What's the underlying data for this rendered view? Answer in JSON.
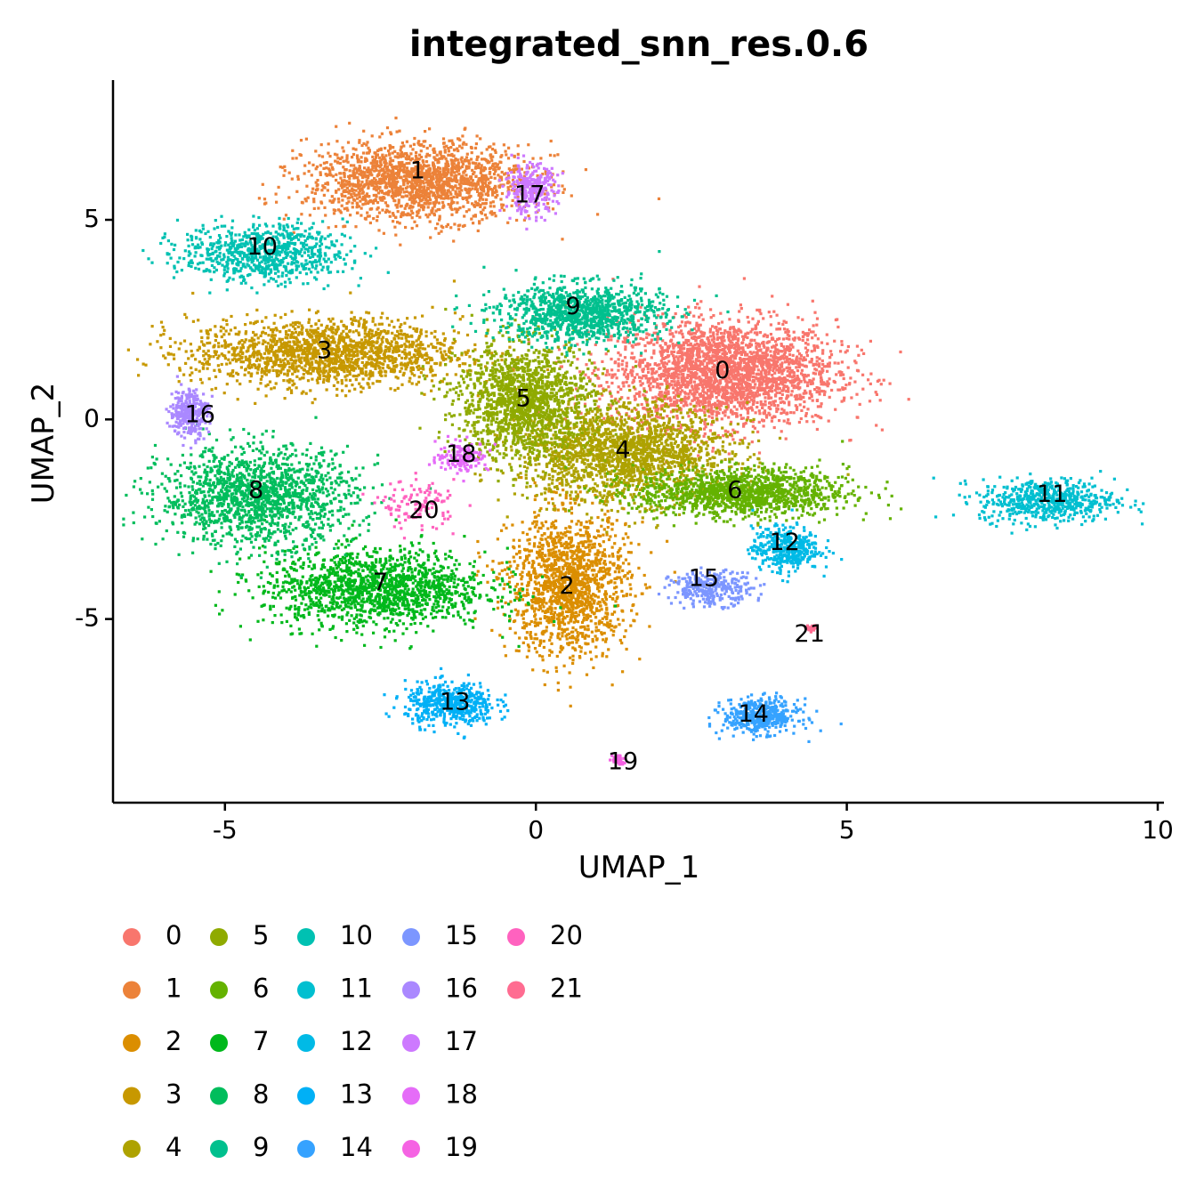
{
  "chart_data": {
    "type": "scatter",
    "title": "integrated_snn_res.0.6",
    "xlabel": "UMAP_1",
    "ylabel": "UMAP_2",
    "xlim": [
      -6.8,
      10.1
    ],
    "ylim": [
      -9.6,
      8.5
    ],
    "x_ticks": [
      -5,
      0,
      5,
      10
    ],
    "y_ticks": [
      -5,
      0,
      5
    ],
    "x_tick_labels": [
      "-5",
      "0",
      "5",
      "10"
    ],
    "y_tick_labels": [
      "-5",
      "0",
      "5"
    ],
    "grid": false,
    "legend_position": "bottom",
    "clusters": [
      {
        "id": "0",
        "color": "#F8766D",
        "x": 3.0,
        "y": 1.2,
        "sx": 1.5,
        "sy": 1.1,
        "count": 2600
      },
      {
        "id": "1",
        "color": "#EC8239",
        "x": -1.9,
        "y": 6.0,
        "sx": 1.5,
        "sy": 0.8,
        "count": 1800
      },
      {
        "id": "2",
        "color": "#DB8E00",
        "x": 0.5,
        "y": -4.1,
        "sx": 0.8,
        "sy": 1.5,
        "count": 1500
      },
      {
        "id": "3",
        "color": "#C79800",
        "x": -3.4,
        "y": 1.7,
        "sx": 1.8,
        "sy": 0.7,
        "count": 1700
      },
      {
        "id": "4",
        "color": "#AEA200",
        "x": 1.4,
        "y": -0.8,
        "sx": 1.4,
        "sy": 1.0,
        "count": 1900
      },
      {
        "id": "5",
        "color": "#8FAA00",
        "x": -0.2,
        "y": 0.5,
        "sx": 0.9,
        "sy": 1.2,
        "count": 1500
      },
      {
        "id": "6",
        "color": "#64B200",
        "x": 3.3,
        "y": -1.8,
        "sx": 1.4,
        "sy": 0.5,
        "count": 1300
      },
      {
        "id": "7",
        "color": "#00B81B",
        "x": -2.6,
        "y": -4.2,
        "sx": 1.5,
        "sy": 0.8,
        "count": 1500
      },
      {
        "id": "8",
        "color": "#00BD5C",
        "x": -4.5,
        "y": -1.9,
        "sx": 1.3,
        "sy": 1.0,
        "count": 1500
      },
      {
        "id": "9",
        "color": "#00C08E",
        "x": 0.7,
        "y": 2.7,
        "sx": 1.1,
        "sy": 0.6,
        "count": 1100
      },
      {
        "id": "10",
        "color": "#00C1B2",
        "x": -4.4,
        "y": 4.2,
        "sx": 1.1,
        "sy": 0.6,
        "count": 800
      },
      {
        "id": "11",
        "color": "#00BFD0",
        "x": 8.2,
        "y": -2.0,
        "sx": 0.9,
        "sy": 0.45,
        "count": 600
      },
      {
        "id": "12",
        "color": "#00BAE6",
        "x": 4.0,
        "y": -3.2,
        "sx": 0.45,
        "sy": 0.45,
        "count": 400
      },
      {
        "id": "13",
        "color": "#00B0F6",
        "x": -1.4,
        "y": -7.1,
        "sx": 0.6,
        "sy": 0.45,
        "count": 500
      },
      {
        "id": "14",
        "color": "#35A2FF",
        "x": 3.6,
        "y": -7.4,
        "sx": 0.5,
        "sy": 0.35,
        "count": 450
      },
      {
        "id": "15",
        "color": "#7C96FF",
        "x": 2.8,
        "y": -4.2,
        "sx": 0.55,
        "sy": 0.35,
        "count": 300
      },
      {
        "id": "16",
        "color": "#AA88FF",
        "x": -5.6,
        "y": 0.2,
        "sx": 0.25,
        "sy": 0.5,
        "count": 300
      },
      {
        "id": "17",
        "color": "#CD79FF",
        "x": -0.1,
        "y": 5.8,
        "sx": 0.35,
        "sy": 0.5,
        "count": 300
      },
      {
        "id": "18",
        "color": "#E56CF8",
        "x": -1.2,
        "y": -0.9,
        "sx": 0.35,
        "sy": 0.3,
        "count": 150
      },
      {
        "id": "19",
        "color": "#F563E3",
        "x": 1.3,
        "y": -8.5,
        "sx": 0.08,
        "sy": 0.12,
        "count": 40
      },
      {
        "id": "20",
        "color": "#FF62BF",
        "x": -1.9,
        "y": -2.1,
        "sx": 0.5,
        "sy": 0.5,
        "count": 120
      },
      {
        "id": "21",
        "color": "#FF6C91",
        "x": 4.4,
        "y": -5.2,
        "sx": 0.08,
        "sy": 0.06,
        "count": 30
      }
    ],
    "cluster_labels": [
      {
        "text": "0",
        "x": 3.0,
        "y": 1.2
      },
      {
        "text": "1",
        "x": -1.9,
        "y": 6.2
      },
      {
        "text": "2",
        "x": 0.5,
        "y": -4.2
      },
      {
        "text": "3",
        "x": -3.4,
        "y": 1.7
      },
      {
        "text": "4",
        "x": 1.4,
        "y": -0.8
      },
      {
        "text": "5",
        "x": -0.2,
        "y": 0.5
      },
      {
        "text": "6",
        "x": 3.2,
        "y": -1.8
      },
      {
        "text": "7",
        "x": -2.5,
        "y": -4.1
      },
      {
        "text": "8",
        "x": -4.5,
        "y": -1.8
      },
      {
        "text": "9",
        "x": 0.6,
        "y": 2.8
      },
      {
        "text": "10",
        "x": -4.4,
        "y": 4.3
      },
      {
        "text": "11",
        "x": 8.3,
        "y": -1.9
      },
      {
        "text": "12",
        "x": 4.0,
        "y": -3.1
      },
      {
        "text": "13",
        "x": -1.3,
        "y": -7.1
      },
      {
        "text": "14",
        "x": 3.5,
        "y": -7.4
      },
      {
        "text": "15",
        "x": 2.7,
        "y": -4.0
      },
      {
        "text": "16",
        "x": -5.4,
        "y": 0.1
      },
      {
        "text": "17",
        "x": -0.1,
        "y": 5.6
      },
      {
        "text": "18",
        "x": -1.2,
        "y": -0.9
      },
      {
        "text": "19",
        "x": 1.4,
        "y": -8.6
      },
      {
        "text": "20",
        "x": -1.8,
        "y": -2.3
      },
      {
        "text": "21",
        "x": 4.4,
        "y": -5.4
      }
    ]
  }
}
